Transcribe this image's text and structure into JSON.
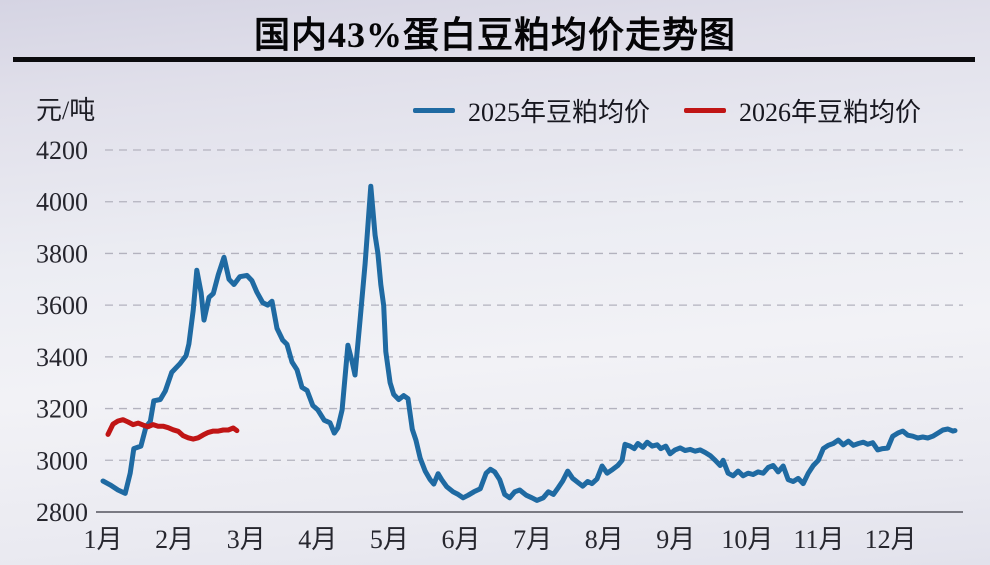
{
  "title": "国内43%蛋白豆粕均价走势图",
  "y_axis_unit": "元/吨",
  "legend": {
    "items": [
      {
        "key": "2025",
        "label": "2025年豆粕均价",
        "color": "#1f6aa2"
      },
      {
        "key": "2026",
        "label": "2026年豆粕均价",
        "color": "#c01515"
      }
    ]
  },
  "colors": {
    "blue_series": "#1f6aa2",
    "red_series": "#c01515",
    "gridline": "#b3b2be",
    "axis_line": "#55555e",
    "text": "#26262e",
    "title_rule": "#0b0b0e"
  },
  "chart_data": {
    "type": "line",
    "title": "国内43%蛋白豆粕均价走势图",
    "ylabel": "元/吨",
    "ylim": [
      2800,
      4200
    ],
    "yticks": [
      2800,
      3000,
      3200,
      3400,
      3600,
      3800,
      4000,
      4200
    ],
    "categories": [
      "1月",
      "2月",
      "3月",
      "4月",
      "5月",
      "6月",
      "7月",
      "8月",
      "9月",
      "10月",
      "11月",
      "12月"
    ],
    "grid": "horizontal-dashed",
    "legend_position": "top",
    "x_unit": "month (1 = Jan 1, fractional = day of month)",
    "series": [
      {
        "key": "2025",
        "name": "2025年豆粕均价",
        "color": "#1f6aa2",
        "x": [
          1.0,
          1.1,
          1.21,
          1.31,
          1.38,
          1.43,
          1.53,
          1.6,
          1.66,
          1.71,
          1.8,
          1.87,
          1.96,
          2.08,
          2.16,
          2.2,
          2.26,
          2.31,
          2.37,
          2.41,
          2.48,
          2.54,
          2.61,
          2.69,
          2.76,
          2.83,
          2.91,
          3.01,
          3.08,
          3.15,
          3.23,
          3.3,
          3.36,
          3.43,
          3.51,
          3.57,
          3.64,
          3.71,
          3.78,
          3.85,
          3.93,
          4.0,
          4.09,
          4.17,
          4.23,
          4.28,
          4.34,
          4.42,
          4.48,
          4.52,
          4.59,
          4.66,
          4.74,
          4.8,
          4.84,
          4.88,
          4.92,
          4.95,
          5.01,
          5.06,
          5.13,
          5.2,
          5.26,
          5.32,
          5.37,
          5.43,
          5.5,
          5.57,
          5.62,
          5.68,
          5.73,
          5.8,
          5.89,
          5.96,
          6.03,
          6.1,
          6.18,
          6.27,
          6.35,
          6.41,
          6.47,
          6.54,
          6.61,
          6.68,
          6.75,
          6.82,
          6.91,
          6.99,
          7.06,
          7.15,
          7.22,
          7.29,
          7.36,
          7.42,
          7.49,
          7.56,
          7.63,
          7.7,
          7.77,
          7.83,
          7.9,
          7.97,
          8.04,
          8.12,
          8.19,
          8.25,
          8.29,
          8.36,
          8.42,
          8.47,
          8.54,
          8.6,
          8.67,
          8.74,
          8.79,
          8.86,
          8.92,
          8.99,
          9.06,
          9.13,
          9.2,
          9.27,
          9.34,
          9.41,
          9.48,
          9.55,
          9.62,
          9.66,
          9.73,
          9.8,
          9.87,
          9.94,
          10.01,
          10.08,
          10.15,
          10.22,
          10.29,
          10.36,
          10.43,
          10.5,
          10.57,
          10.64,
          10.71,
          10.78,
          10.85,
          10.92,
          10.99,
          11.06,
          11.13,
          11.2,
          11.27,
          11.34,
          11.41,
          11.48,
          11.55,
          11.62,
          11.68,
          11.75,
          11.82,
          11.89,
          11.96,
          12.03,
          12.1,
          12.17,
          12.24,
          12.31,
          12.38,
          12.45,
          12.52,
          12.59,
          12.66,
          12.73,
          12.8,
          12.87,
          12.9
        ],
        "y": [
          2920,
          2905,
          2885,
          2872,
          2950,
          3045,
          3055,
          3130,
          3150,
          3230,
          3235,
          3268,
          3340,
          3375,
          3405,
          3450,
          3580,
          3735,
          3648,
          3542,
          3630,
          3645,
          3718,
          3785,
          3700,
          3680,
          3710,
          3715,
          3695,
          3650,
          3610,
          3600,
          3615,
          3510,
          3465,
          3448,
          3380,
          3350,
          3282,
          3270,
          3212,
          3195,
          3155,
          3145,
          3105,
          3125,
          3195,
          3445,
          3380,
          3330,
          3540,
          3760,
          4060,
          3870,
          3800,
          3680,
          3598,
          3420,
          3300,
          3255,
          3235,
          3250,
          3238,
          3120,
          3078,
          3008,
          2958,
          2925,
          2908,
          2948,
          2925,
          2898,
          2878,
          2868,
          2855,
          2865,
          2878,
          2890,
          2950,
          2965,
          2955,
          2925,
          2868,
          2855,
          2878,
          2885,
          2865,
          2855,
          2845,
          2855,
          2878,
          2868,
          2895,
          2920,
          2958,
          2930,
          2915,
          2900,
          2918,
          2910,
          2928,
          2978,
          2950,
          2965,
          2980,
          3000,
          3062,
          3055,
          3045,
          3065,
          3050,
          3070,
          3055,
          3060,
          3045,
          3055,
          3025,
          3040,
          3048,
          3038,
          3042,
          3035,
          3040,
          3030,
          3018,
          3000,
          2980,
          3000,
          2950,
          2940,
          2958,
          2940,
          2950,
          2945,
          2955,
          2950,
          2972,
          2980,
          2955,
          2978,
          2925,
          2918,
          2930,
          2910,
          2950,
          2980,
          3000,
          3045,
          3058,
          3065,
          3078,
          3060,
          3074,
          3058,
          3065,
          3070,
          3062,
          3068,
          3040,
          3045,
          3047,
          3093,
          3105,
          3113,
          3097,
          3093,
          3086,
          3090,
          3086,
          3093,
          3105,
          3117,
          3121,
          3113,
          3115
        ]
      },
      {
        "key": "2026",
        "name": "2026年豆粕均价",
        "color": "#c01515",
        "x": [
          1.07,
          1.14,
          1.21,
          1.28,
          1.35,
          1.42,
          1.49,
          1.56,
          1.63,
          1.7,
          1.77,
          1.84,
          1.91,
          1.98,
          2.05,
          2.12,
          2.19,
          2.26,
          2.33,
          2.4,
          2.47,
          2.54,
          2.61,
          2.68,
          2.75,
          2.82,
          2.87
        ],
        "y": [
          3100,
          3140,
          3152,
          3157,
          3148,
          3138,
          3144,
          3136,
          3130,
          3138,
          3132,
          3132,
          3126,
          3118,
          3112,
          3095,
          3087,
          3082,
          3087,
          3098,
          3108,
          3113,
          3113,
          3117,
          3117,
          3125,
          3115
        ]
      }
    ]
  }
}
